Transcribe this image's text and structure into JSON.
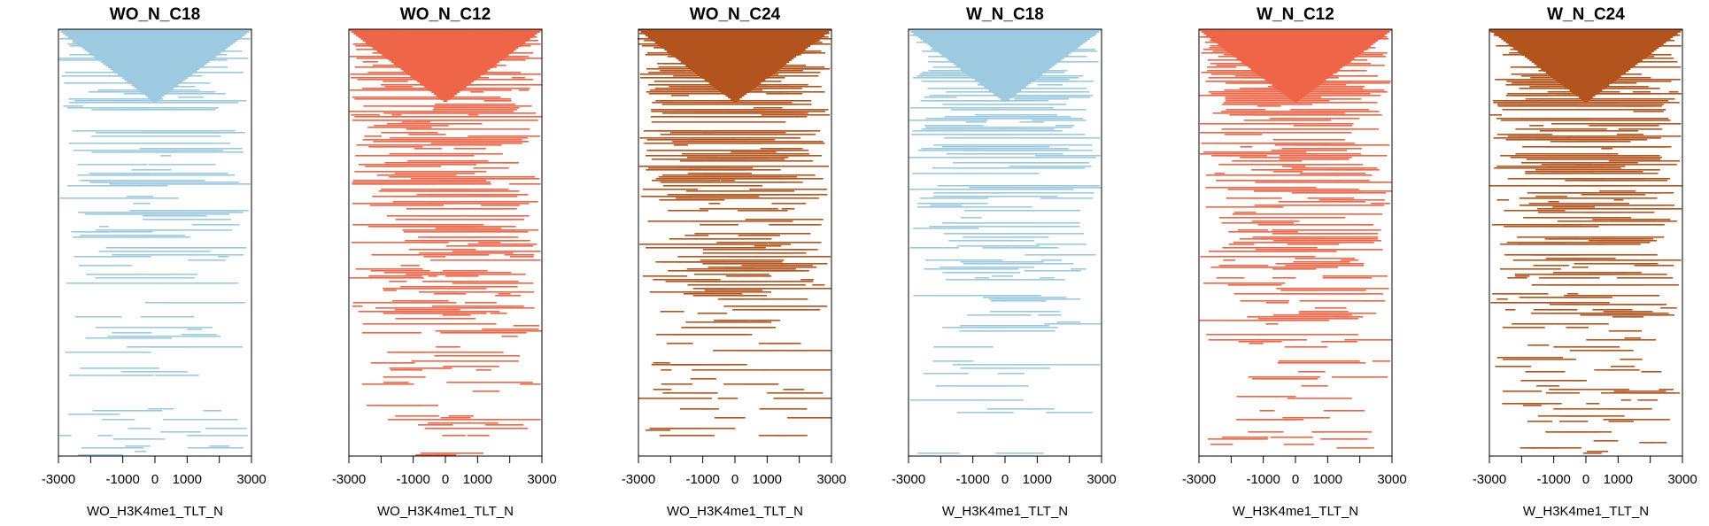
{
  "chart_data": [
    {
      "type": "heatmap",
      "title": "WO_N_C18",
      "xlabel": "WO_H3K4me1_TLT_N",
      "x_ticks": [
        -3000,
        -2000,
        -1000,
        0,
        1000,
        2000,
        3000
      ],
      "x_tick_labels": [
        "-3000",
        "-1000",
        "0",
        "1000",
        "3000"
      ],
      "xlim": [
        -3000,
        3000
      ],
      "color": "#9ecae1",
      "density": 0.55
    },
    {
      "type": "heatmap",
      "title": "WO_N_C12",
      "xlabel": "WO_H3K4me1_TLT_N",
      "x_ticks": [
        -3000,
        -2000,
        -1000,
        0,
        1000,
        2000,
        3000
      ],
      "x_tick_labels": [
        "-3000",
        "-1000",
        "0",
        "1000",
        "3000"
      ],
      "xlim": [
        -3000,
        3000
      ],
      "color": "#ef6548",
      "density": 0.85
    },
    {
      "type": "heatmap",
      "title": "WO_N_C24",
      "xlabel": "WO_H3K4me1_TLT_N",
      "x_ticks": [
        -3000,
        -2000,
        -1000,
        0,
        1000,
        2000,
        3000
      ],
      "x_tick_labels": [
        "-3000",
        "-1000",
        "0",
        "1000",
        "3000"
      ],
      "xlim": [
        -3000,
        3000
      ],
      "color": "#b3541e",
      "density": 0.85
    },
    {
      "type": "heatmap",
      "title": "W_N_C18",
      "xlabel": "W_H3K4me1_TLT_N",
      "x_ticks": [
        -3000,
        -2000,
        -1000,
        0,
        1000,
        2000,
        3000
      ],
      "x_tick_labels": [
        "-3000",
        "-1000",
        "0",
        "1000",
        "3000"
      ],
      "xlim": [
        -3000,
        3000
      ],
      "color": "#9ecae1",
      "density": 0.55
    },
    {
      "type": "heatmap",
      "title": "W_N_C12",
      "xlabel": "W_H3K4me1_TLT_N",
      "x_ticks": [
        -3000,
        -2000,
        -1000,
        0,
        1000,
        2000,
        3000
      ],
      "x_tick_labels": [
        "-3000",
        "-1000",
        "0",
        "1000",
        "3000"
      ],
      "xlim": [
        -3000,
        3000
      ],
      "color": "#ef6548",
      "density": 0.85
    },
    {
      "type": "heatmap",
      "title": "W_N_C24",
      "xlabel": "W_H3K4me1_TLT_N",
      "x_ticks": [
        -3000,
        -2000,
        -1000,
        0,
        1000,
        2000,
        3000
      ],
      "x_tick_labels": [
        "-3000",
        "-1000",
        "0",
        "1000",
        "3000"
      ],
      "xlim": [
        -3000,
        3000
      ],
      "color": "#b3541e",
      "density": 0.85
    }
  ]
}
